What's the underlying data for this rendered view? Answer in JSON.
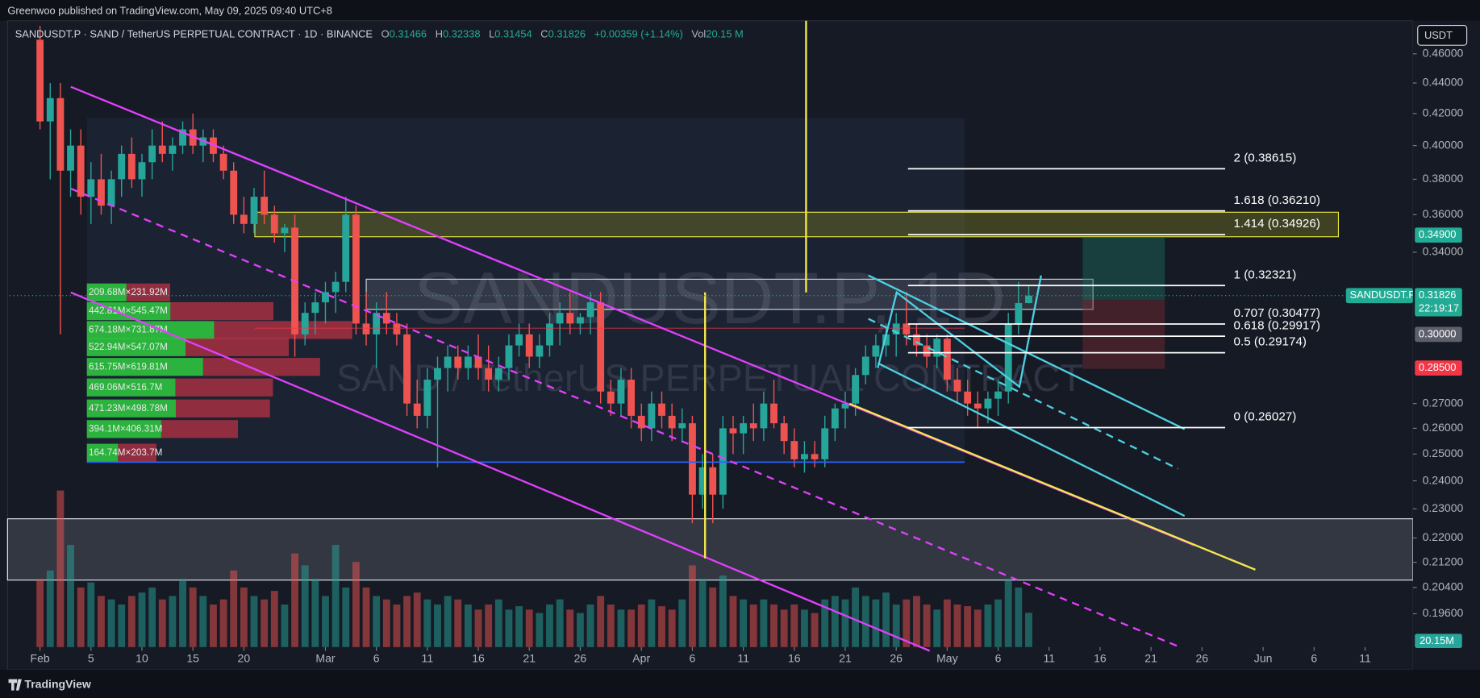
{
  "header": {
    "publisher": "Greenwoo published on TradingView.com, May 09, 2025 09:40 UTC+8"
  },
  "legend": {
    "symbol": "SANDUSDT.P · SAND / TetherUS PERPETUAL CONTRACT · 1D · BINANCE",
    "ohlc": [
      {
        "key": "O",
        "value": "0.31466"
      },
      {
        "key": "H",
        "value": "0.32338"
      },
      {
        "key": "L",
        "value": "0.31454"
      },
      {
        "key": "C",
        "value": "0.31826"
      }
    ],
    "change": "+0.00359 (+1.14%)",
    "vol_key": "Vol",
    "vol_value": "20.15 M"
  },
  "currency": "USDT",
  "watermark": {
    "symbol": "SANDUSDT.P, 1D",
    "description": "SAND / TetherUS PERPETUAL CONTRACT"
  },
  "footer": "TradingView",
  "chart_data": {
    "type": "candlestick",
    "log_scale": true,
    "up_color": "#26a69a",
    "down_color": "#ef5350",
    "xlim": [
      -3,
      134.7
    ],
    "xticks": [
      {
        "value": 0,
        "label": "Feb"
      },
      5,
      10,
      15,
      20,
      {
        "value": 28,
        "label": "Mar"
      },
      {
        "value": 33,
        "label": "6"
      },
      {
        "value": 38,
        "label": "11"
      },
      {
        "value": 43,
        "label": "16"
      },
      {
        "value": 48,
        "label": "21"
      },
      {
        "value": 53,
        "label": "26"
      },
      {
        "value": 59,
        "label": "Apr"
      },
      {
        "value": 64,
        "label": "6"
      },
      {
        "value": 69,
        "label": "11"
      },
      {
        "value": 74,
        "label": "16"
      },
      {
        "value": 79,
        "label": "21"
      },
      {
        "value": 84,
        "label": "26"
      },
      {
        "value": 89,
        "label": "May"
      },
      {
        "value": 94,
        "label": "6"
      },
      {
        "value": 99,
        "label": "11"
      },
      {
        "value": 104,
        "label": "16"
      },
      {
        "value": 109,
        "label": "21"
      },
      {
        "value": 114,
        "label": "26"
      },
      {
        "value": 120,
        "label": "Jun"
      },
      {
        "value": 125,
        "label": "6"
      },
      {
        "value": 130,
        "label": "11"
      }
    ],
    "ylim": [
      0.1863,
      0.4838
    ],
    "yticks": [
      {
        "value": 0.46,
        "label": "0.46000"
      },
      {
        "value": 0.44,
        "label": "0.44000"
      },
      {
        "value": 0.42,
        "label": "0.42000"
      },
      {
        "value": 0.4,
        "label": "0.40000"
      },
      {
        "value": 0.38,
        "label": "0.38000"
      },
      {
        "value": 0.36,
        "label": "0.36000"
      },
      {
        "value": 0.34,
        "label": "0.34000"
      },
      {
        "value": 0.27,
        "label": "0.27000"
      },
      {
        "value": 0.26,
        "label": "0.26000"
      },
      {
        "value": 0.25,
        "label": "0.25000"
      },
      {
        "value": 0.24,
        "label": "0.24000"
      },
      {
        "value": 0.23,
        "label": "0.23000"
      },
      {
        "value": 0.22,
        "label": "0.22000"
      },
      {
        "value": 0.212,
        "label": "0.21200"
      },
      {
        "value": 0.204,
        "label": "0.20400"
      },
      {
        "value": 0.196,
        "label": "0.19600"
      }
    ],
    "open": [
      0.47,
      0.415,
      0.43,
      0.385,
      0.4,
      0.37,
      0.38,
      0.365,
      0.38,
      0.395,
      0.38,
      0.39,
      0.4,
      0.395,
      0.4,
      0.41,
      0.4,
      0.405,
      0.395,
      0.385,
      0.36,
      0.355,
      0.37,
      0.36,
      0.35,
      0.353,
      0.3,
      0.31,
      0.315,
      0.32,
      0.325,
      0.36,
      0.305,
      0.3,
      0.31,
      0.305,
      0.3,
      0.27,
      0.265,
      0.28,
      0.285,
      0.29,
      0.285,
      0.29,
      0.285,
      0.28,
      0.285,
      0.295,
      0.3,
      0.29,
      0.295,
      0.305,
      0.31,
      0.305,
      0.308,
      0.315,
      0.275,
      0.27,
      0.28,
      0.265,
      0.26,
      0.27,
      0.265,
      0.26,
      0.262,
      0.235,
      0.245,
      0.235,
      0.26,
      0.258,
      0.262,
      0.26,
      0.27,
      0.262,
      0.255,
      0.248,
      0.25,
      0.248,
      0.26,
      0.268,
      0.27,
      0.282,
      0.29,
      0.295,
      0.3,
      0.305,
      0.3,
      0.295,
      0.29,
      0.298,
      0.28,
      0.275,
      0.27,
      0.268,
      0.272,
      0.275,
      0.305,
      0.31466
    ],
    "high": [
      0.48,
      0.44,
      0.44,
      0.41,
      0.41,
      0.39,
      0.395,
      0.385,
      0.4,
      0.405,
      0.395,
      0.41,
      0.415,
      0.405,
      0.415,
      0.42,
      0.41,
      0.41,
      0.4,
      0.39,
      0.37,
      0.375,
      0.385,
      0.365,
      0.355,
      0.36,
      0.315,
      0.32,
      0.325,
      0.33,
      0.37,
      0.365,
      0.32,
      0.315,
      0.32,
      0.31,
      0.305,
      0.28,
      0.285,
      0.29,
      0.295,
      0.295,
      0.295,
      0.3,
      0.295,
      0.29,
      0.3,
      0.305,
      0.305,
      0.3,
      0.31,
      0.315,
      0.32,
      0.31,
      0.32,
      0.32,
      0.28,
      0.285,
      0.285,
      0.27,
      0.275,
      0.275,
      0.27,
      0.268,
      0.265,
      0.25,
      0.25,
      0.265,
      0.265,
      0.265,
      0.27,
      0.275,
      0.28,
      0.265,
      0.26,
      0.255,
      0.255,
      0.265,
      0.27,
      0.275,
      0.285,
      0.295,
      0.3,
      0.305,
      0.31,
      0.32,
      0.305,
      0.3,
      0.3,
      0.3,
      0.285,
      0.28,
      0.275,
      0.275,
      0.28,
      0.31,
      0.325,
      0.32338
    ],
    "low": [
      0.41,
      0.38,
      0.3,
      0.37,
      0.36,
      0.355,
      0.36,
      0.355,
      0.37,
      0.375,
      0.37,
      0.38,
      0.39,
      0.385,
      0.395,
      0.395,
      0.39,
      0.39,
      0.38,
      0.355,
      0.35,
      0.35,
      0.355,
      0.345,
      0.34,
      0.29,
      0.295,
      0.3,
      0.305,
      0.31,
      0.32,
      0.3,
      0.295,
      0.285,
      0.3,
      0.295,
      0.265,
      0.26,
      0.26,
      0.245,
      0.275,
      0.28,
      0.28,
      0.28,
      0.275,
      0.275,
      0.28,
      0.29,
      0.285,
      0.285,
      0.29,
      0.295,
      0.3,
      0.3,
      0.3,
      0.27,
      0.265,
      0.265,
      0.26,
      0.255,
      0.255,
      0.26,
      0.255,
      0.255,
      0.225,
      0.23,
      0.225,
      0.23,
      0.25,
      0.25,
      0.255,
      0.255,
      0.26,
      0.25,
      0.245,
      0.243,
      0.245,
      0.245,
      0.255,
      0.26,
      0.265,
      0.278,
      0.285,
      0.29,
      0.29,
      0.295,
      0.29,
      0.285,
      0.285,
      0.275,
      0.27,
      0.265,
      0.26,
      0.262,
      0.265,
      0.27,
      0.3,
      0.31454
    ],
    "close": [
      0.415,
      0.43,
      0.385,
      0.4,
      0.37,
      0.38,
      0.365,
      0.38,
      0.395,
      0.38,
      0.39,
      0.4,
      0.395,
      0.4,
      0.41,
      0.4,
      0.405,
      0.395,
      0.385,
      0.36,
      0.355,
      0.37,
      0.36,
      0.35,
      0.353,
      0.3,
      0.31,
      0.315,
      0.32,
      0.325,
      0.36,
      0.305,
      0.3,
      0.31,
      0.305,
      0.3,
      0.27,
      0.265,
      0.28,
      0.285,
      0.29,
      0.285,
      0.29,
      0.285,
      0.28,
      0.285,
      0.295,
      0.3,
      0.29,
      0.295,
      0.305,
      0.31,
      0.305,
      0.308,
      0.315,
      0.275,
      0.27,
      0.28,
      0.265,
      0.26,
      0.27,
      0.265,
      0.26,
      0.262,
      0.235,
      0.245,
      0.235,
      0.26,
      0.258,
      0.262,
      0.26,
      0.27,
      0.262,
      0.255,
      0.248,
      0.25,
      0.248,
      0.26,
      0.268,
      0.27,
      0.282,
      0.29,
      0.295,
      0.3,
      0.305,
      0.3,
      0.295,
      0.29,
      0.298,
      0.28,
      0.275,
      0.27,
      0.268,
      0.272,
      0.275,
      0.305,
      0.31466,
      0.31826
    ],
    "volume": [
      40,
      45,
      92,
      60,
      35,
      38,
      30,
      28,
      25,
      30,
      32,
      35,
      28,
      30,
      40,
      35,
      30,
      25,
      28,
      45,
      35,
      30,
      28,
      33,
      25,
      55,
      48,
      40,
      30,
      60,
      35,
      50,
      35,
      30,
      28,
      25,
      30,
      32,
      28,
      25,
      30,
      28,
      25,
      22,
      25,
      28,
      22,
      24,
      22,
      20,
      25,
      28,
      22,
      20,
      25,
      30,
      25,
      22,
      22,
      25,
      28,
      24,
      22,
      28,
      48,
      40,
      35,
      42,
      30,
      28,
      25,
      28,
      25,
      22,
      25,
      22,
      20,
      28,
      30,
      28,
      35,
      30,
      28,
      32,
      25,
      28,
      30,
      25,
      22,
      28,
      25,
      24,
      22,
      25,
      28,
      40,
      35,
      20.15
    ],
    "volume_label": "20.15M",
    "fib_levels": [
      {
        "label": "2 (0.38615)",
        "price": 0.38615
      },
      {
        "label": "1.618 (0.36210)",
        "price": 0.3621
      },
      {
        "label": "1.414 (0.34926)",
        "price": 0.34926
      },
      {
        "label": "1 (0.32321)",
        "price": 0.32321
      },
      {
        "label": "0.707 (0.30477)",
        "price": 0.30477
      },
      {
        "label": "0.618 (0.29917)",
        "price": 0.29917
      },
      {
        "label": "0.5 (0.29174)",
        "price": 0.29174
      },
      {
        "label": "0 (0.26027)",
        "price": 0.26027
      }
    ],
    "price_markers": [
      {
        "label": "0.34900",
        "value": 0.349,
        "color": "#22ab94"
      },
      {
        "name": "SANDUSDT.P",
        "label": "0.31826",
        "value": 0.31826,
        "countdown": "22:19:17",
        "color": "#22ab94"
      },
      {
        "label": "0.30000",
        "value": 0.3,
        "color": "#5d606b"
      },
      {
        "label": "0.28500",
        "value": 0.285,
        "color": "#f23645"
      }
    ],
    "volume_profile": [
      {
        "price": 0.3198,
        "up": 209.68,
        "down": 231.92,
        "label": "209.68M×231.92M"
      },
      {
        "price": 0.3108,
        "up": 442.81,
        "down": 545.47,
        "label": "442.81M×545.47M"
      },
      {
        "price": 0.302,
        "up": 674.18,
        "down": 731.87,
        "label": "674.18M×731.87M"
      },
      {
        "price": 0.2942,
        "up": 522.94,
        "down": 547.07,
        "label": "522.94M×547.07M"
      },
      {
        "price": 0.2855,
        "up": 615.75,
        "down": 619.81,
        "label": "615.75M×619.81M"
      },
      {
        "price": 0.2767,
        "up": 469.06,
        "down": 516.7,
        "label": "469.06M×516.7M"
      },
      {
        "price": 0.268,
        "up": 471.23,
        "down": 498.78,
        "label": "471.23M×498.78M"
      },
      {
        "price": 0.2597,
        "up": 394.1,
        "down": 406.31,
        "label": "394.1M×406.31M"
      },
      {
        "price": 0.2505,
        "up": 164.74,
        "down": 203.7,
        "label": "164.74M×203.7M"
      }
    ]
  }
}
